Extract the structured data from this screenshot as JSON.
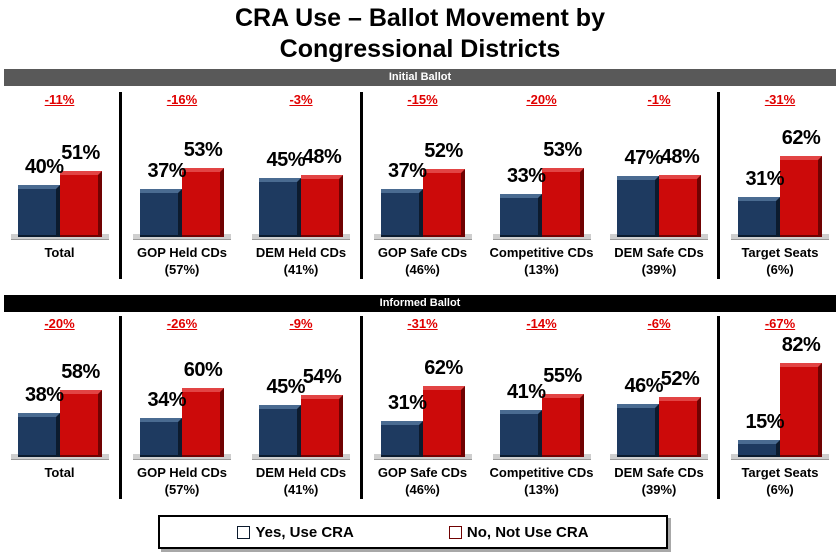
{
  "title": {
    "line1": "CRA Use – Ballot Movement by",
    "line2": "Congressional Districts"
  },
  "chart_data": {
    "type": "bar",
    "title": "CRA Use – Ballot Movement by Congressional Districts",
    "value_suffix": "%",
    "ylim": [
      0,
      100
    ],
    "grid": false,
    "legend_position": "bottom",
    "series": [
      {
        "name": "Yes, Use CRA",
        "color": "#1e3a60"
      },
      {
        "name": "No, Not Use CRA",
        "color": "#cc0a0a"
      }
    ],
    "divider_after_indices": [
      0,
      2,
      5
    ],
    "panels": [
      {
        "label": "Initial Ballot",
        "banner_color": "#595959",
        "groups": [
          {
            "category": "Total",
            "share": "",
            "delta": "-11%",
            "yes": 40,
            "no": 51
          },
          {
            "category": "GOP Held CDs",
            "share": "(57%)",
            "delta": "-16%",
            "yes": 37,
            "no": 53
          },
          {
            "category": "DEM Held CDs",
            "share": "(41%)",
            "delta": "-3%",
            "yes": 45,
            "no": 48
          },
          {
            "category": "GOP Safe CDs",
            "share": "(46%)",
            "delta": "-15%",
            "yes": 37,
            "no": 52
          },
          {
            "category": "Competitive CDs",
            "share": "(13%)",
            "delta": "-20%",
            "yes": 33,
            "no": 53
          },
          {
            "category": "DEM Safe CDs",
            "share": "(39%)",
            "delta": "-1%",
            "yes": 47,
            "no": 48
          },
          {
            "category": "Target Seats",
            "share": "(6%)",
            "delta": "-31%",
            "yes": 31,
            "no": 62
          }
        ]
      },
      {
        "label": "Informed Ballot",
        "banner_color": "#000000",
        "groups": [
          {
            "category": "Total",
            "share": "",
            "delta": "-20%",
            "yes": 38,
            "no": 58
          },
          {
            "category": "GOP Held CDs",
            "share": "(57%)",
            "delta": "-26%",
            "yes": 34,
            "no": 60
          },
          {
            "category": "DEM Held CDs",
            "share": "(41%)",
            "delta": "-9%",
            "yes": 45,
            "no": 54
          },
          {
            "category": "GOP Safe CDs",
            "share": "(46%)",
            "delta": "-31%",
            "yes": 31,
            "no": 62
          },
          {
            "category": "Competitive CDs",
            "share": "(13%)",
            "delta": "-14%",
            "yes": 41,
            "no": 55
          },
          {
            "category": "DEM Safe CDs",
            "share": "(39%)",
            "delta": "-6%",
            "yes": 46,
            "no": 52
          },
          {
            "category": "Target Seats",
            "share": "(6%)",
            "delta": "-67%",
            "yes": 15,
            "no": 82
          }
        ]
      }
    ]
  }
}
